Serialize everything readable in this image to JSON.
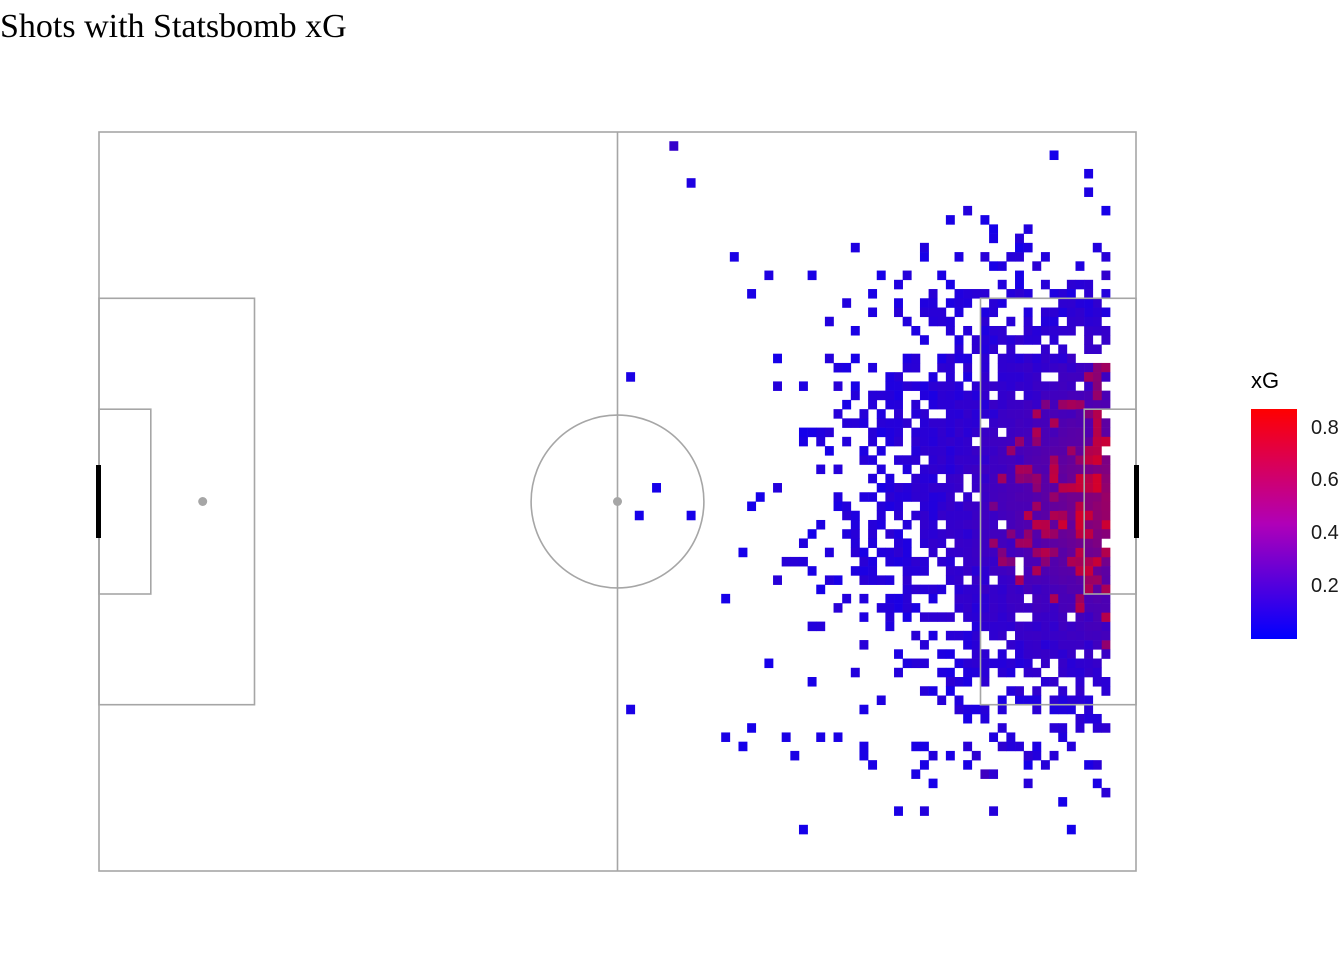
{
  "chart_data": {
    "type": "heatmap",
    "title": "Shots with Statsbomb xG",
    "xlim": [
      0,
      120
    ],
    "ylim": [
      0,
      80
    ],
    "cell_size": 1,
    "color_scale": {
      "title": "xG",
      "low_color": "#0000ff",
      "high_color": "#ff0000",
      "range": [
        0,
        0.87
      ],
      "ticks": [
        0.2,
        0.4,
        0.6,
        0.8
      ],
      "tick_labels": [
        "0.2",
        "0.4",
        "0.6",
        "0.8"
      ]
    },
    "pitch_colors": {
      "line": "#a6a6a6",
      "goal": "#000000",
      "spot": "#a6a6a6"
    },
    "outlier_cells": [
      [
        66,
        1,
        0.12
      ],
      [
        68,
        5,
        0.06
      ],
      [
        98,
        9,
        0.05
      ],
      [
        103,
        11,
        0.05
      ],
      [
        106,
        11,
        0.08
      ],
      [
        87,
        12,
        0.06
      ],
      [
        107,
        12,
        0.06
      ],
      [
        73,
        13,
        0.05
      ],
      [
        105,
        13,
        0.08
      ],
      [
        99,
        13,
        0.06
      ],
      [
        109,
        13,
        0.07
      ],
      [
        77,
        15,
        0.06
      ],
      [
        82,
        15,
        0.05
      ],
      [
        104,
        16,
        0.07
      ],
      [
        116,
        15,
        0.11
      ],
      [
        114,
        17,
        0.1
      ],
      [
        89,
        17,
        0.05
      ],
      [
        61,
        26,
        0.05
      ],
      [
        75,
        17,
        0.05
      ],
      [
        106,
        17,
        0.1
      ],
      [
        78,
        24,
        0.04
      ],
      [
        68,
        41,
        0.04
      ],
      [
        64,
        38,
        0.04
      ],
      [
        62,
        41,
        0.04
      ],
      [
        75,
        40,
        0.04
      ],
      [
        76,
        39,
        0.04
      ],
      [
        74,
        45,
        0.04
      ],
      [
        72,
        50,
        0.04
      ],
      [
        61,
        62,
        0.05
      ],
      [
        77,
        57,
        0.04
      ],
      [
        75,
        64,
        0.04
      ],
      [
        79,
        65,
        0.05
      ],
      [
        80,
        67,
        0.05
      ],
      [
        72,
        65,
        0.05
      ],
      [
        74,
        66,
        0.04
      ],
      [
        83,
        65,
        0.05
      ],
      [
        88,
        67,
        0.05
      ],
      [
        94,
        66,
        0.05
      ],
      [
        101,
        67,
        0.1
      ],
      [
        104,
        66,
        0.1
      ],
      [
        106,
        66,
        0.08
      ],
      [
        107,
        67,
        0.1
      ],
      [
        102,
        69,
        0.15
      ],
      [
        109,
        68,
        0.08
      ],
      [
        92,
        73,
        0.05
      ],
      [
        103,
        69,
        0.1
      ],
      [
        95,
        66,
        0.05
      ],
      [
        89,
        68,
        0.05
      ],
      [
        98,
        67,
        0.05
      ],
      [
        95,
        68,
        0.05
      ],
      [
        85,
        65,
        0.05
      ],
      [
        88,
        62,
        0.05
      ],
      [
        81,
        75,
        0.04
      ],
      [
        94,
        69,
        0.05
      ],
      [
        88,
        66,
        0.05
      ]
    ]
  }
}
